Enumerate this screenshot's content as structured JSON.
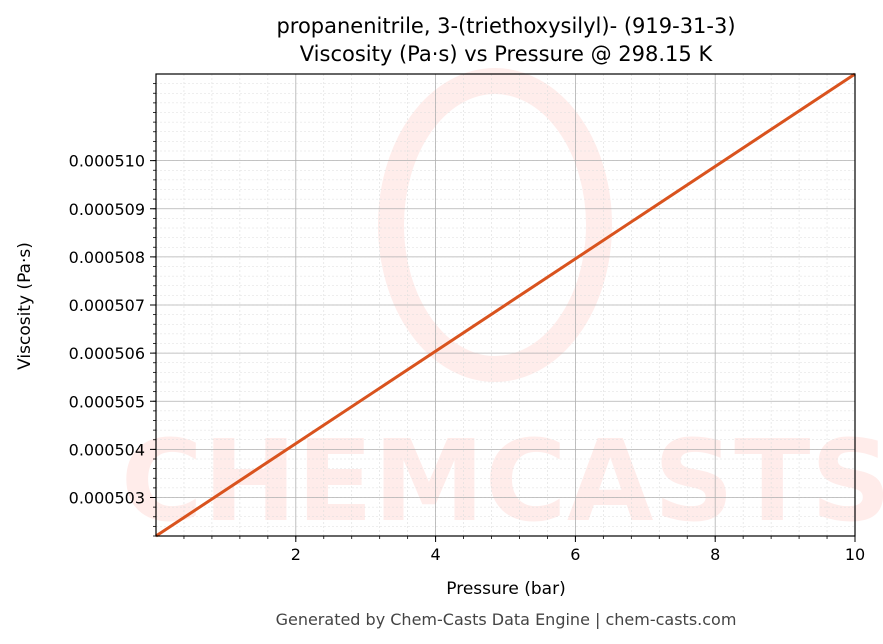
{
  "chart_data": {
    "type": "line",
    "title_line1": "propanenitrile, 3-(triethoxysilyl)- (919-31-3)",
    "title_line2": "Viscosity (Pa·s) vs Pressure @ 298.15 K",
    "xlabel": "Pressure (bar)",
    "ylabel": "Viscosity (Pa·s)",
    "xlim": [
      0.0,
      10.0
    ],
    "ylim": [
      0.0005022,
      0.0005118
    ],
    "x_ticks": [
      2,
      4,
      6,
      8,
      10
    ],
    "x_tick_labels": [
      "2",
      "4",
      "6",
      "8",
      "10"
    ],
    "y_ticks": [
      0.000503,
      0.000504,
      0.000505,
      0.000506,
      0.000507,
      0.000508,
      0.000509,
      0.00051
    ],
    "y_tick_labels": [
      "0.000503",
      "0.000504",
      "0.000505",
      "0.000506",
      "0.000507",
      "0.000508",
      "0.000509",
      "0.000510"
    ],
    "grid": true,
    "series": [
      {
        "color": "#d9531e",
        "x": [
          0.0,
          10.0
        ],
        "y": [
          0.0005022,
          0.0005118
        ]
      }
    ]
  },
  "watermark": "CHEMCASTS",
  "footer": "Generated by Chem-Casts Data Engine | chem-casts.com"
}
